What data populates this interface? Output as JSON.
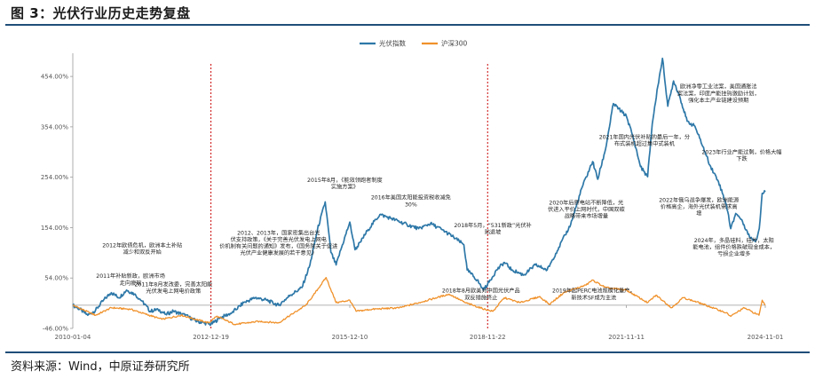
{
  "figure": {
    "title": "图 3：光伏行业历史走势复盘",
    "source": "资料来源：Wind，中原证券研究所"
  },
  "chart_data": {
    "type": "line",
    "x_ticks": [
      "2010-01-04",
      "2012-12-19",
      "2015-12-10",
      "2018-11-22",
      "2021-11-11",
      "2024-11-01"
    ],
    "y_ticks": [
      "-46.00%",
      "54.00%",
      "154.00%",
      "254.00%",
      "354.00%",
      "454.00%"
    ],
    "ylim": [
      -46,
      500
    ],
    "xlim": [
      "2010-01-04",
      "2024-11-01"
    ],
    "grid": false,
    "legend_position": "top-center",
    "event_lines": [
      "2012-12-19",
      "2018-11-22"
    ],
    "series": [
      {
        "name": "光伏指数",
        "color": "#2e78a8",
        "points": [
          [
            "2010-01-04",
            0
          ],
          [
            "2010-03-01",
            -8
          ],
          [
            "2010-05-01",
            -20
          ],
          [
            "2010-07-01",
            -10
          ],
          [
            "2010-09-01",
            10
          ],
          [
            "2010-11-01",
            25
          ],
          [
            "2011-01-01",
            15
          ],
          [
            "2011-03-01",
            30
          ],
          [
            "2011-05-01",
            22
          ],
          [
            "2011-07-01",
            8
          ],
          [
            "2011-09-01",
            -12
          ],
          [
            "2011-11-01",
            -8
          ],
          [
            "2012-01-01",
            -18
          ],
          [
            "2012-03-01",
            -12
          ],
          [
            "2012-06-01",
            -20
          ],
          [
            "2012-09-01",
            -32
          ],
          [
            "2012-12-19",
            -38
          ],
          [
            "2013-03-01",
            -25
          ],
          [
            "2013-06-01",
            -15
          ],
          [
            "2013-09-01",
            5
          ],
          [
            "2013-12-01",
            15
          ],
          [
            "2014-03-01",
            10
          ],
          [
            "2014-06-01",
            0
          ],
          [
            "2014-09-01",
            20
          ],
          [
            "2014-12-01",
            35
          ],
          [
            "2015-02-01",
            80
          ],
          [
            "2015-04-01",
            150
          ],
          [
            "2015-06-01",
            205
          ],
          [
            "2015-07-15",
            105
          ],
          [
            "2015-08-25",
            80
          ],
          [
            "2015-10-01",
            110
          ],
          [
            "2015-12-10",
            165
          ],
          [
            "2016-01-20",
            110
          ],
          [
            "2016-03-01",
            125
          ],
          [
            "2016-05-01",
            150
          ],
          [
            "2016-08-01",
            180
          ],
          [
            "2016-11-01",
            172
          ],
          [
            "2017-03-01",
            160
          ],
          [
            "2017-06-01",
            152
          ],
          [
            "2017-09-01",
            162
          ],
          [
            "2017-12-01",
            150
          ],
          [
            "2018-03-01",
            135
          ],
          [
            "2018-05-20",
            120
          ],
          [
            "2018-06-15",
            70
          ],
          [
            "2018-09-01",
            50
          ],
          [
            "2018-10-20",
            30
          ],
          [
            "2018-11-22",
            42
          ],
          [
            "2019-02-01",
            70
          ],
          [
            "2019-04-01",
            85
          ],
          [
            "2019-06-01",
            70
          ],
          [
            "2019-09-01",
            60
          ],
          [
            "2019-12-01",
            80
          ],
          [
            "2020-03-01",
            70
          ],
          [
            "2020-06-01",
            115
          ],
          [
            "2020-09-01",
            160
          ],
          [
            "2020-12-01",
            235
          ],
          [
            "2021-02-20",
            285
          ],
          [
            "2021-04-01",
            250
          ],
          [
            "2021-06-01",
            310
          ],
          [
            "2021-08-01",
            400
          ],
          [
            "2021-10-01",
            385
          ],
          [
            "2021-11-11",
            375
          ],
          [
            "2022-01-01",
            335
          ],
          [
            "2022-03-01",
            275
          ],
          [
            "2022-04-26",
            255
          ],
          [
            "2022-06-01",
            360
          ],
          [
            "2022-07-15",
            435
          ],
          [
            "2022-08-20",
            490
          ],
          [
            "2022-10-01",
            395
          ],
          [
            "2022-11-15",
            445
          ],
          [
            "2023-01-01",
            415
          ],
          [
            "2023-03-01",
            365
          ],
          [
            "2023-05-01",
            355
          ],
          [
            "2023-07-01",
            315
          ],
          [
            "2023-09-01",
            275
          ],
          [
            "2023-11-01",
            245
          ],
          [
            "2024-01-01",
            200
          ],
          [
            "2024-02-05",
            152
          ],
          [
            "2024-03-15",
            182
          ],
          [
            "2024-05-01",
            170
          ],
          [
            "2024-07-01",
            135
          ],
          [
            "2024-08-20",
            128
          ],
          [
            "2024-09-15",
            152
          ],
          [
            "2024-10-08",
            222
          ],
          [
            "2024-11-01",
            225
          ]
        ]
      },
      {
        "name": "沪深300",
        "color": "#f0912a",
        "points": [
          [
            "2010-01-04",
            0
          ],
          [
            "2010-07-01",
            -20
          ],
          [
            "2010-11-01",
            -5
          ],
          [
            "2011-04-01",
            -8
          ],
          [
            "2011-12-01",
            -28
          ],
          [
            "2012-05-01",
            -20
          ],
          [
            "2012-12-01",
            -35
          ],
          [
            "2013-02-01",
            -22
          ],
          [
            "2013-06-25",
            -38
          ],
          [
            "2014-01-01",
            -32
          ],
          [
            "2014-06-01",
            -35
          ],
          [
            "2014-12-31",
            0
          ],
          [
            "2015-03-01",
            20
          ],
          [
            "2015-06-08",
            55
          ],
          [
            "2015-08-25",
            5
          ],
          [
            "2015-12-10",
            10
          ],
          [
            "2016-01-28",
            -12
          ],
          [
            "2016-06-01",
            -8
          ],
          [
            "2017-01-01",
            -5
          ],
          [
            "2017-06-01",
            5
          ],
          [
            "2018-01-25",
            22
          ],
          [
            "2018-06-01",
            5
          ],
          [
            "2018-11-22",
            -10
          ],
          [
            "2019-01-03",
            -12
          ],
          [
            "2019-04-01",
            15
          ],
          [
            "2019-08-01",
            5
          ],
          [
            "2020-01-01",
            17
          ],
          [
            "2020-03-20",
            2
          ],
          [
            "2020-07-10",
            25
          ],
          [
            "2020-12-31",
            40
          ],
          [
            "2021-02-18",
            50
          ],
          [
            "2021-06-01",
            35
          ],
          [
            "2021-11-11",
            30
          ],
          [
            "2022-04-26",
            5
          ],
          [
            "2022-07-01",
            20
          ],
          [
            "2022-10-31",
            -5
          ],
          [
            "2023-01-28",
            15
          ],
          [
            "2023-06-01",
            5
          ],
          [
            "2023-12-31",
            -15
          ],
          [
            "2024-02-05",
            -22
          ],
          [
            "2024-05-20",
            -5
          ],
          [
            "2024-09-13",
            -20
          ],
          [
            "2024-10-08",
            10
          ],
          [
            "2024-11-01",
            0
          ]
        ]
      }
    ],
    "annotations": [
      {
        "lines": [
          "2011年补贴新政，欧洲市场",
          "走向疲软"
        ],
        "date": "2011-04-01",
        "value": 54
      },
      {
        "lines": [
          "2012年欧债危机，欧洲本土补贴",
          "减少和双反开始"
        ],
        "date": "2011-07-01",
        "value": 115
      },
      {
        "lines": [
          "2011年8月发改委，完善太阳能",
          "光伏发电上网电价政策"
        ],
        "date": "2012-03-01",
        "value": 38
      },
      {
        "lines": [
          "2012、2013年，国家密集出台光",
          "伏支持政策，《关于完善光伏发电上网电",
          "价机制有关问题的通知》发布，《国务院关于促进",
          "光伏产业健康发展的若干意见》"
        ],
        "date": "2014-06-01",
        "value": 140
      },
      {
        "lines": [
          "2015年8月，《能效领跑者制度",
          "实施方案》"
        ],
        "date": "2015-11-01",
        "value": 245
      },
      {
        "lines": [
          "2016年美国太阳能投资税收减免",
          "30%"
        ],
        "date": "2017-04-01",
        "value": 210
      },
      {
        "lines": [
          "2018年5月，“531新政”光伏补",
          "贴退坡"
        ],
        "date": "2019-01-01",
        "value": 155
      },
      {
        "lines": [
          "2018年8月欧美对中国光伏产品",
          "双反措施终止"
        ],
        "date": "2018-10-01",
        "value": 25
      },
      {
        "lines": [
          "2020年后原电站不断降低，光",
          "伏进入平价上网时代，中国双碳",
          "战略带来市场增量"
        ],
        "date": "2021-01-01",
        "value": 200
      },
      {
        "lines": [
          "2019年起PERC电池规模化量产，",
          "新技术SF成为主流"
        ],
        "date": "2021-03-01",
        "value": 25
      },
      {
        "lines": [
          "2021年国内光伏补贴的最后一年，分",
          "布式装机超过集中式装机"
        ],
        "date": "2022-04-01",
        "value": 330
      },
      {
        "lines": [
          "2022年俄乌战争爆发，欧洲能源",
          "价格高企，海外光伏装机需求高",
          "增"
        ],
        "date": "2023-06-01",
        "value": 205
      },
      {
        "lines": [
          "欧洲净零工业法案，美国通胀法",
          "案法案，印度产能挂钩激励计划，",
          "强化本土产业链建设预期"
        ],
        "date": "2023-11-01",
        "value": 430
      },
      {
        "lines": [
          "2023年行业产能过剩，价格大幅",
          "下跌"
        ],
        "date": "2024-05-01",
        "value": 300
      },
      {
        "lines": [
          "2024年，多晶硅料，硅片，太阳",
          "能电池，组件价格跌破现金成本，",
          "亏损企业增多"
        ],
        "date": "2024-03-01",
        "value": 125
      }
    ]
  }
}
